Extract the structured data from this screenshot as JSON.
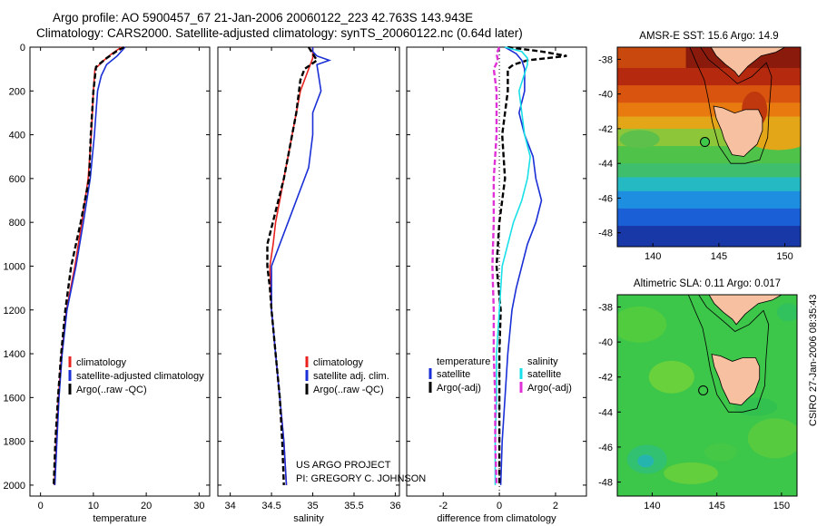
{
  "header": {
    "line1": "Argo profile: AO 5900457_67 21-Jan-2006 20060122_223 42.763S 143.943E",
    "line2": "Climatology: CARS2000. Satellite-adjusted climatology: synTS_20060122.nc (0.64d later)"
  },
  "colors": {
    "clim": "#e8231f",
    "sat": "#1a2fd6",
    "argo": "#000000",
    "sat_sal": "#19e0e8",
    "argo_sal": "#e030d8"
  },
  "chart_data": [
    {
      "type": "line",
      "id": "temperature",
      "xlabel": "temperature",
      "xlim": [
        -2,
        32
      ],
      "ylim": [
        2050,
        0
      ],
      "x_ticks": [
        0,
        10,
        20,
        30
      ],
      "y_ticks": [
        0,
        200,
        400,
        600,
        800,
        1000,
        1200,
        1400,
        1600,
        1800,
        2000
      ],
      "series": [
        {
          "name": "climatology",
          "color": "#e8231f",
          "points": [
            [
              15.3,
              0
            ],
            [
              13.5,
              30
            ],
            [
              12,
              60
            ],
            [
              10.3,
              100
            ],
            [
              10,
              200
            ],
            [
              9.6,
              400
            ],
            [
              9,
              600
            ],
            [
              7.8,
              800
            ],
            [
              6.5,
              1000
            ],
            [
              4.9,
              1200
            ],
            [
              4.0,
              1400
            ],
            [
              3.4,
              1600
            ],
            [
              3.0,
              1800
            ],
            [
              2.6,
              2000
            ]
          ]
        },
        {
          "name": "satellite-adjusted climatology",
          "color": "#1a2fd6",
          "points": [
            [
              16,
              0
            ],
            [
              14.5,
              40
            ],
            [
              12.5,
              80
            ],
            [
              11.5,
              130
            ],
            [
              10.8,
              200
            ],
            [
              10.2,
              400
            ],
            [
              9.4,
              600
            ],
            [
              8.1,
              800
            ],
            [
              6.7,
              1000
            ],
            [
              5.0,
              1200
            ],
            [
              4.1,
              1400
            ],
            [
              3.5,
              1600
            ],
            [
              3.1,
              1800
            ],
            [
              2.7,
              2000
            ]
          ]
        },
        {
          "name": "Argo(..raw -QC)",
          "color": "#000000",
          "dashed": true,
          "points": [
            [
              15.8,
              0
            ],
            [
              14.3,
              20
            ],
            [
              12.5,
              50
            ],
            [
              10.5,
              90
            ],
            [
              10,
              200
            ],
            [
              9.5,
              400
            ],
            [
              9.2,
              600
            ],
            [
              7.6,
              800
            ],
            [
              5.8,
              1000
            ],
            [
              4.7,
              1200
            ],
            [
              3.9,
              1400
            ],
            [
              3.3,
              1600
            ],
            [
              2.8,
              1800
            ],
            [
              2.5,
              2000
            ]
          ]
        }
      ],
      "legend": {
        "items": [
          "climatology",
          "satellite-adjusted climatology",
          "Argo(..raw -QC)"
        ]
      }
    },
    {
      "type": "line",
      "id": "salinity",
      "xlabel": "salinity",
      "xlim": [
        33.85,
        36.05
      ],
      "ylim": [
        2050,
        0
      ],
      "x_ticks": [
        34,
        34.5,
        35,
        35.5,
        36
      ],
      "x_tick_labels": [
        "34",
        "34.5",
        "35",
        "35.5",
        "36"
      ],
      "series": [
        {
          "name": "climatology",
          "color": "#e8231f",
          "points": [
            [
              35.0,
              0
            ],
            [
              35.0,
              50
            ],
            [
              34.95,
              100
            ],
            [
              34.85,
              200
            ],
            [
              34.8,
              300
            ],
            [
              34.75,
              400
            ],
            [
              34.7,
              500
            ],
            [
              34.65,
              600
            ],
            [
              34.6,
              700
            ],
            [
              34.55,
              800
            ],
            [
              34.52,
              900
            ],
            [
              34.48,
              1000
            ],
            [
              34.5,
              1200
            ],
            [
              34.55,
              1400
            ],
            [
              34.6,
              1600
            ],
            [
              34.65,
              1800
            ],
            [
              34.68,
              2000
            ]
          ]
        },
        {
          "name": "satellite adj. clim.",
          "color": "#1a2fd6",
          "points": [
            [
              35.0,
              0
            ],
            [
              35.0,
              20
            ],
            [
              35.05,
              40
            ],
            [
              35.2,
              60
            ],
            [
              35.05,
              80
            ],
            [
              35.1,
              200
            ],
            [
              35.0,
              300
            ],
            [
              35.0,
              400
            ],
            [
              34.95,
              550
            ],
            [
              34.85,
              650
            ],
            [
              34.7,
              800
            ],
            [
              34.6,
              900
            ],
            [
              34.5,
              1000
            ],
            [
              34.5,
              1200
            ],
            [
              34.55,
              1400
            ],
            [
              34.6,
              1600
            ],
            [
              34.65,
              1800
            ],
            [
              34.68,
              2000
            ]
          ]
        },
        {
          "name": "Argo(..raw -QC)",
          "color": "#000000",
          "dashed": true,
          "points": [
            [
              34.95,
              0
            ],
            [
              35.05,
              60
            ],
            [
              34.9,
              100
            ],
            [
              34.85,
              150
            ],
            [
              34.8,
              300
            ],
            [
              34.7,
              500
            ],
            [
              34.65,
              600
            ],
            [
              34.55,
              750
            ],
            [
              34.45,
              900
            ],
            [
              34.45,
              1000
            ],
            [
              34.48,
              1100
            ],
            [
              34.5,
              1200
            ],
            [
              34.55,
              1400
            ],
            [
              34.6,
              1600
            ],
            [
              34.63,
              1800
            ],
            [
              34.65,
              2000
            ]
          ]
        }
      ],
      "legend": {
        "items": [
          "climatology",
          "satellite adj. clim.",
          "Argo(..raw -QC)"
        ]
      },
      "annotation": [
        "US ARGO PROJECT",
        "PI: GREGORY C. JOHNSON"
      ]
    },
    {
      "type": "line",
      "id": "difference",
      "xlabel": "difference from climatology",
      "xlim": [
        -3.3,
        3.1
      ],
      "x_ticks": [
        -2,
        0,
        2
      ],
      "series": [
        {
          "name": "temperature satellite",
          "color": "#1a2fd6",
          "points": [
            [
              0.2,
              0
            ],
            [
              0.6,
              30
            ],
            [
              0.8,
              60
            ],
            [
              0.9,
              100
            ],
            [
              0.9,
              200
            ],
            [
              0.7,
              300
            ],
            [
              0.9,
              400
            ],
            [
              1.2,
              500
            ],
            [
              1.3,
              600
            ],
            [
              1.5,
              700
            ],
            [
              1.3,
              800
            ],
            [
              1.0,
              900
            ],
            [
              0.6,
              1100
            ],
            [
              0.45,
              1200
            ],
            [
              0.3,
              1400
            ],
            [
              0.2,
              1600
            ],
            [
              0.1,
              1800
            ],
            [
              0.05,
              2000
            ]
          ]
        },
        {
          "name": "temperature Argo(-adj)",
          "color": "#000000",
          "dashed": true,
          "points": [
            [
              0.3,
              0
            ],
            [
              1.5,
              20
            ],
            [
              2.4,
              40
            ],
            [
              1.0,
              60
            ],
            [
              0.5,
              80
            ],
            [
              0.3,
              100
            ],
            [
              0.3,
              200
            ],
            [
              0.1,
              400
            ],
            [
              0.2,
              600
            ],
            [
              0,
              800
            ],
            [
              -0.1,
              1000
            ],
            [
              0.05,
              1200
            ],
            [
              0,
              1400
            ],
            [
              0,
              1600
            ],
            [
              0,
              1800
            ],
            [
              0,
              2000
            ]
          ]
        },
        {
          "name": "salinity satellite",
          "color": "#19e0e8",
          "points": [
            [
              0.2,
              0
            ],
            [
              0.8,
              20
            ],
            [
              1.0,
              50
            ],
            [
              1.0,
              80
            ],
            [
              0.7,
              200
            ],
            [
              0.9,
              400
            ],
            [
              1.1,
              500
            ],
            [
              1.0,
              600
            ],
            [
              0.8,
              700
            ],
            [
              0.5,
              800
            ],
            [
              0.3,
              900
            ],
            [
              0.1,
              1000
            ],
            [
              0,
              1200
            ],
            [
              -0.1,
              1400
            ],
            [
              -0.1,
              1600
            ],
            [
              -0.15,
              1800
            ],
            [
              -0.15,
              2000
            ]
          ]
        },
        {
          "name": "salinity Argo(-adj)",
          "color": "#e030d8",
          "dashed": true,
          "points": [
            [
              0,
              0
            ],
            [
              -0.1,
              30
            ],
            [
              -0.05,
              60
            ],
            [
              -0.2,
              100
            ],
            [
              -0.1,
              200
            ],
            [
              -0.1,
              400
            ],
            [
              -0.2,
              600
            ],
            [
              -0.2,
              800
            ],
            [
              -0.25,
              1000
            ],
            [
              -0.2,
              1200
            ],
            [
              -0.2,
              1400
            ],
            [
              -0.15,
              1600
            ],
            [
              -0.15,
              1800
            ],
            [
              -0.1,
              2000
            ]
          ]
        }
      ],
      "legend": {
        "col1_title": "temperature",
        "col2_title": "salinity",
        "items": [
          "satellite",
          "Argo(-adj)",
          "satellite",
          "Argo(-adj)"
        ]
      }
    },
    {
      "type": "heatmap",
      "id": "sst-map",
      "title": "AMSR-E SST: 15.6  Argo: 14.9",
      "x_ticks": [
        140,
        145,
        150
      ],
      "y_ticks": [
        -38,
        -40,
        -42,
        -44,
        -46,
        -48
      ],
      "xlim": [
        137.3,
        151.2
      ],
      "ylim": [
        -48.8,
        -37.3
      ],
      "float_position": [
        143.943,
        -42.763
      ]
    },
    {
      "type": "heatmap",
      "id": "sla-map",
      "title": "Altimetric SLA: 0.11  Argo: 0.017",
      "x_ticks": [
        140,
        145,
        150
      ],
      "y_ticks": [
        -38,
        -40,
        -42,
        -44,
        -46,
        -48
      ],
      "xlim": [
        137.3,
        151.2
      ],
      "ylim": [
        -48.8,
        -37.3
      ],
      "float_position": [
        143.943,
        -42.763
      ]
    }
  ],
  "stamp": "CSIRO 27-Jan-2006 08:35:43"
}
